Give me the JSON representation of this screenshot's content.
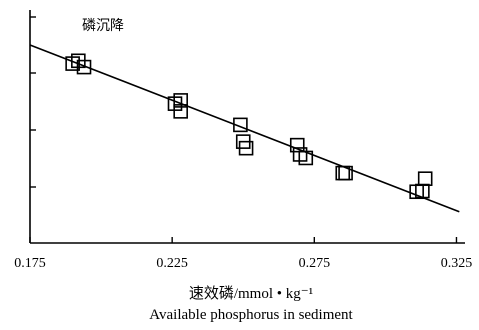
{
  "chart_data": {
    "type": "scatter",
    "title": "磷沉降",
    "xlabel_cn": "速效磷/mmol • kg⁻¹",
    "xlabel_en": "Available phosphorus in sediment",
    "ylabel": "",
    "xlim": [
      0.175,
      0.328
    ],
    "ylim": [
      0,
      1
    ],
    "x_ticks": [
      "0.175",
      "0.225",
      "0.275",
      "0.325"
    ],
    "grid": false,
    "marker": "open-square",
    "color": "#000000",
    "series": [
      {
        "points": [
          {
            "x": 0.19,
            "y": 0.77
          },
          {
            "x": 0.192,
            "y": 0.782
          },
          {
            "x": 0.194,
            "y": 0.755
          },
          {
            "x": 0.226,
            "y": 0.598
          },
          {
            "x": 0.228,
            "y": 0.612
          },
          {
            "x": 0.228,
            "y": 0.565
          },
          {
            "x": 0.249,
            "y": 0.507
          },
          {
            "x": 0.25,
            "y": 0.435
          },
          {
            "x": 0.251,
            "y": 0.407
          },
          {
            "x": 0.269,
            "y": 0.42
          },
          {
            "x": 0.27,
            "y": 0.38
          },
          {
            "x": 0.272,
            "y": 0.365
          },
          {
            "x": 0.285,
            "y": 0.3
          },
          {
            "x": 0.286,
            "y": 0.3
          },
          {
            "x": 0.311,
            "y": 0.22
          },
          {
            "x": 0.313,
            "y": 0.223
          },
          {
            "x": 0.314,
            "y": 0.276
          }
        ]
      }
    ],
    "fit_line": {
      "x": [
        0.175,
        0.326
      ],
      "y": [
        0.85,
        0.134
      ]
    }
  }
}
